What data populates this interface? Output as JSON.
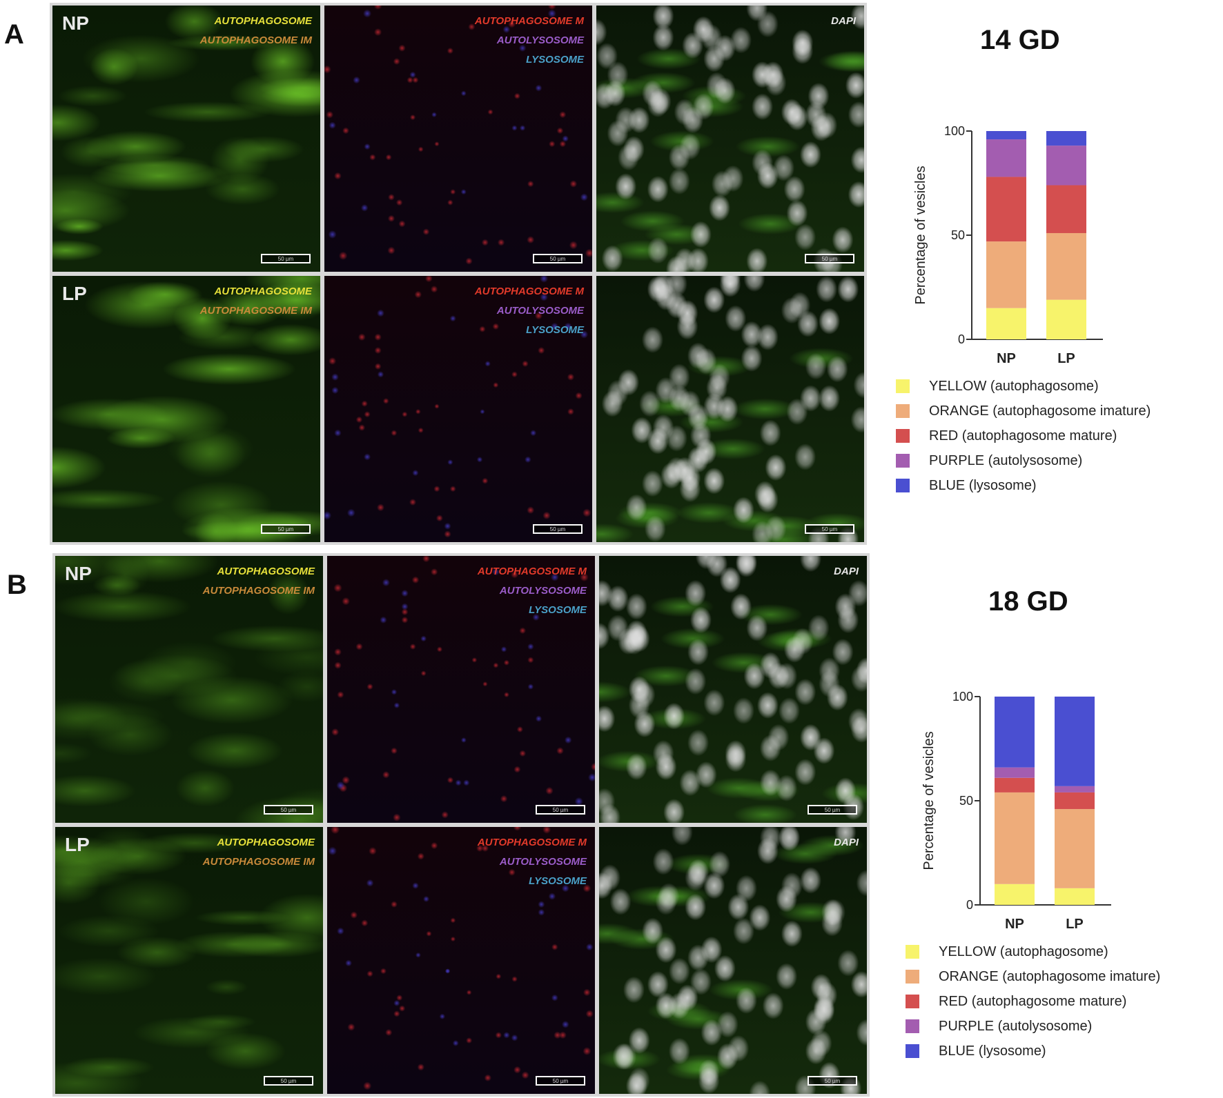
{
  "panels": [
    {
      "letter": "A",
      "title": "14 GD",
      "rows": [
        {
          "condition": "NP",
          "green_labels": [
            "AUTOPHAGOSOME",
            "AUTOPHAGOSOME IM"
          ],
          "red_labels": [
            "AUTOPHAGOSOME M",
            "AUTOLYSOSOME",
            "LYSOSOME"
          ],
          "merge_label": "DAPI",
          "scale_label": "50 µm"
        },
        {
          "condition": "LP",
          "green_labels": [
            "AUTOPHAGOSOME",
            "AUTOPHAGOSOME IM"
          ],
          "red_labels": [
            "AUTOPHAGOSOME M",
            "AUTOLYSOSOME",
            "LYSOSOME"
          ],
          "merge_label": "",
          "scale_label": "50 µm"
        }
      ]
    },
    {
      "letter": "B",
      "title": "18 GD",
      "rows": [
        {
          "condition": "NP",
          "green_labels": [
            "AUTOPHAGOSOME",
            "AUTOPHAGOSOME IM"
          ],
          "red_labels": [
            "AUTOPHAGOSOME M",
            "AUTOLYSOSOME",
            "LYSOSOME"
          ],
          "merge_label": "DAPI",
          "scale_label": "50 µm"
        },
        {
          "condition": "LP",
          "green_labels": [
            "AUTOPHAGOSOME",
            "AUTOPHAGOSOME IM"
          ],
          "red_labels": [
            "AUTOPHAGOSOME M",
            "AUTOLYSOSOME",
            "LYSOSOME"
          ],
          "merge_label": "DAPI",
          "scale_label": "50 µm"
        }
      ]
    }
  ],
  "colors": {
    "yellow": "#f7f36b",
    "orange": "#eeac7a",
    "red": "#d44f4f",
    "purple": "#a35db0",
    "blue": "#4a4fd1",
    "green_label": "#e6e03a",
    "orange_label": "#c98a3a",
    "red_label": "#e23a2a",
    "purple_label": "#9a5cc8",
    "blue_label": "#4aa0c8"
  },
  "legend": [
    {
      "key": "yellow",
      "label": "YELLOW (autophagosome)"
    },
    {
      "key": "orange",
      "label": "ORANGE (autophagosome imature)"
    },
    {
      "key": "red",
      "label": "RED (autophagosome mature)"
    },
    {
      "key": "purple",
      "label": "PURPLE (autolysosome)"
    },
    {
      "key": "blue",
      "label": "BLUE (lysosome)"
    }
  ],
  "chart_data": [
    {
      "type": "bar",
      "stacked": true,
      "title": "14 GD",
      "ylabel": "Percentage of vesicles",
      "ylim": [
        0,
        100
      ],
      "yticks": [
        0,
        50,
        100
      ],
      "categories": [
        "NP",
        "LP"
      ],
      "series": [
        {
          "name": "YELLOW (autophagosome)",
          "color": "#f7f36b",
          "values": [
            15,
            19
          ]
        },
        {
          "name": "ORANGE (autophagosome imature)",
          "color": "#eeac7a",
          "values": [
            32,
            32
          ]
        },
        {
          "name": "RED (autophagosome mature)",
          "color": "#d44f4f",
          "values": [
            31,
            23
          ]
        },
        {
          "name": "PURPLE (autolysosome)",
          "color": "#a35db0",
          "values": [
            18,
            19
          ]
        },
        {
          "name": "BLUE (lysosome)",
          "color": "#4a4fd1",
          "values": [
            4,
            7
          ]
        }
      ]
    },
    {
      "type": "bar",
      "stacked": true,
      "title": "18 GD",
      "ylabel": "Percentage of vesicles",
      "ylim": [
        0,
        100
      ],
      "yticks": [
        0,
        50,
        100
      ],
      "categories": [
        "NP",
        "LP"
      ],
      "series": [
        {
          "name": "YELLOW (autophagosome)",
          "color": "#f7f36b",
          "values": [
            10,
            8
          ]
        },
        {
          "name": "ORANGE (autophagosome imature)",
          "color": "#eeac7a",
          "values": [
            44,
            38
          ]
        },
        {
          "name": "RED (autophagosome mature)",
          "color": "#d44f4f",
          "values": [
            7,
            8
          ]
        },
        {
          "name": "PURPLE (autolysosome)",
          "color": "#a35db0",
          "values": [
            5,
            3
          ]
        },
        {
          "name": "BLUE (lysosome)",
          "color": "#4a4fd1",
          "values": [
            34,
            43
          ]
        }
      ]
    }
  ]
}
